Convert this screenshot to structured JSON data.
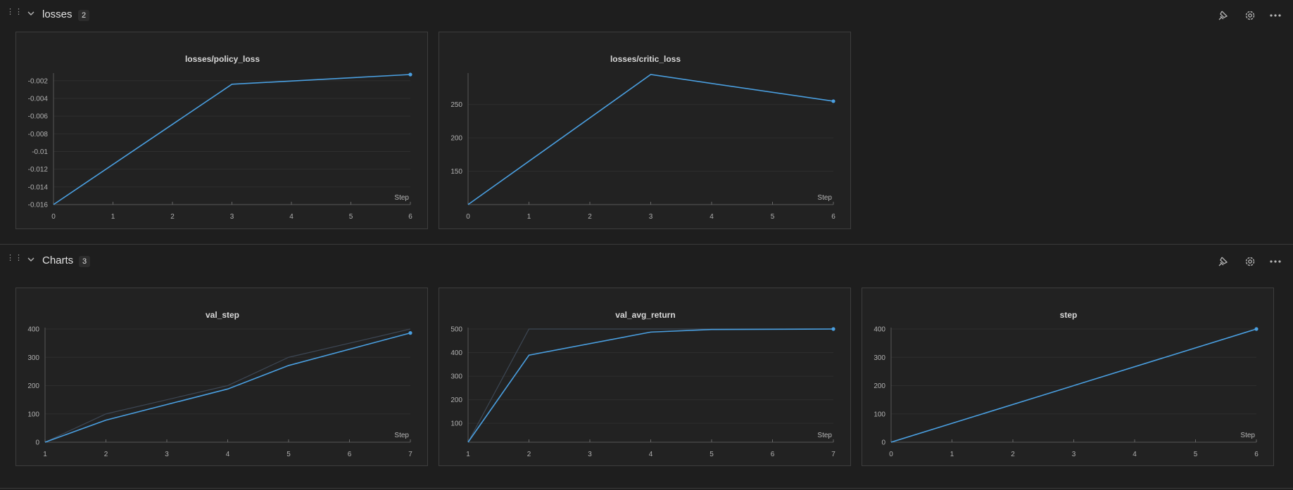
{
  "sections": [
    {
      "title": "losses",
      "count": "2",
      "icons": [
        "drag-handle-icon",
        "chevron-down-icon",
        "pin-icon",
        "gear-icon",
        "more-horizontal-icon"
      ]
    },
    {
      "title": "Charts",
      "count": "3",
      "icons": [
        "drag-handle-icon",
        "chevron-down-icon",
        "pin-icon",
        "gear-icon",
        "more-horizontal-icon"
      ]
    }
  ],
  "colors": {
    "line": "#4a9fe0",
    "ghost_line": "#3d4754",
    "grid": "#2e2e2e",
    "panel_bg": "#222222"
  },
  "chart_data": [
    {
      "type": "line",
      "title": "losses/policy_loss",
      "xlabel": "Step",
      "x_ticks": [
        "0",
        "1",
        "2",
        "3",
        "4",
        "5",
        "6"
      ],
      "y_ticks": [
        "-0.002",
        "-0.004",
        "-0.006",
        "-0.008",
        "-0.01",
        "-0.012",
        "-0.014",
        "-0.016"
      ],
      "xlim": [
        0,
        6
      ],
      "ylim": [
        -0.016,
        -0.0013
      ],
      "series": [
        {
          "x": [
            0,
            3,
            6
          ],
          "y": [
            -0.016,
            -0.0024,
            -0.0013
          ]
        }
      ]
    },
    {
      "type": "line",
      "title": "losses/critic_loss",
      "xlabel": "Step",
      "x_ticks": [
        "0",
        "1",
        "2",
        "3",
        "4",
        "5",
        "6"
      ],
      "y_ticks": [
        "250",
        "200",
        "150"
      ],
      "xlim": [
        0,
        6
      ],
      "ylim": [
        100,
        295
      ],
      "series": [
        {
          "x": [
            0,
            3,
            6
          ],
          "y": [
            100,
            295,
            255
          ]
        }
      ]
    },
    {
      "type": "line",
      "title": "val_step",
      "xlabel": "Step",
      "x_ticks": [
        "1",
        "2",
        "3",
        "4",
        "5",
        "6",
        "7"
      ],
      "y_ticks": [
        "400",
        "300",
        "200",
        "100",
        "0"
      ],
      "xlim": [
        1,
        7
      ],
      "ylim": [
        0,
        400
      ],
      "ghost": {
        "x": [
          1,
          2,
          4,
          5,
          7
        ],
        "y": [
          0,
          100,
          200,
          300,
          400
        ]
      },
      "series": [
        {
          "x": [
            1,
            2,
            4,
            5,
            7
          ],
          "y": [
            0,
            78,
            188,
            271,
            386
          ]
        }
      ]
    },
    {
      "type": "line",
      "title": "val_avg_return",
      "xlabel": "Step",
      "x_ticks": [
        "1",
        "2",
        "3",
        "4",
        "5",
        "6",
        "7"
      ],
      "y_ticks": [
        "500",
        "400",
        "300",
        "200",
        "100"
      ],
      "xlim": [
        1,
        7
      ],
      "ylim": [
        20,
        500
      ],
      "ghost": {
        "x": [
          1,
          2,
          4,
          5,
          7
        ],
        "y": [
          20,
          500,
          500,
          500,
          500
        ]
      },
      "series": [
        {
          "x": [
            1,
            2,
            4,
            5,
            7
          ],
          "y": [
            20,
            389,
            487,
            498,
            500
          ]
        }
      ]
    },
    {
      "type": "line",
      "title": "step",
      "xlabel": "Step",
      "x_ticks": [
        "0",
        "1",
        "2",
        "3",
        "4",
        "5",
        "6"
      ],
      "y_ticks": [
        "400",
        "300",
        "200",
        "100",
        "0"
      ],
      "xlim": [
        0,
        6
      ],
      "ylim": [
        0,
        400
      ],
      "series": [
        {
          "x": [
            0,
            6
          ],
          "y": [
            0,
            400
          ]
        }
      ]
    }
  ]
}
